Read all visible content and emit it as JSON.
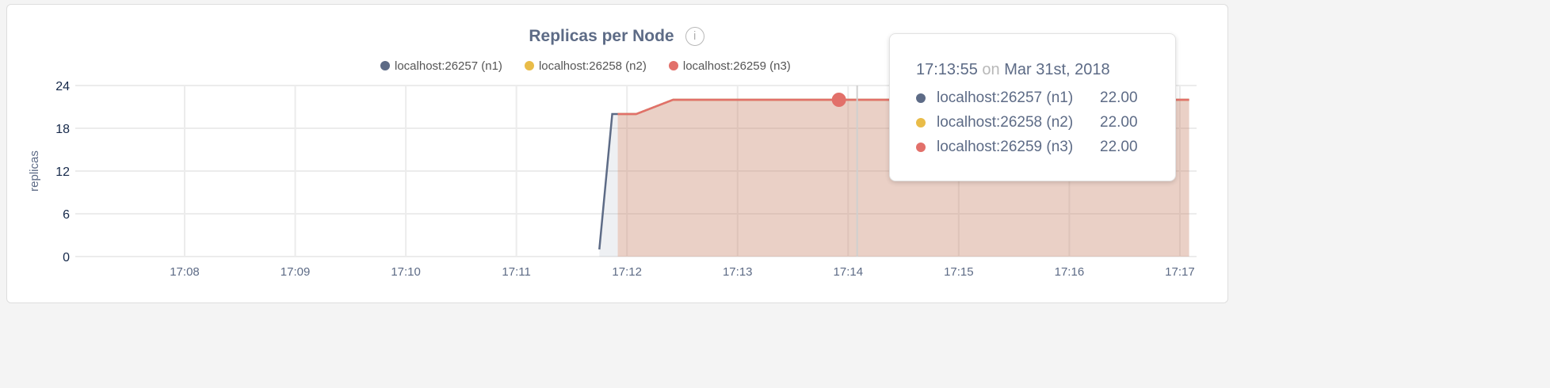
{
  "chart_data": {
    "type": "area",
    "title": "Replicas per Node",
    "ylabel": "replicas",
    "xlabel": "",
    "ylim": [
      0,
      24
    ],
    "yticks": [
      "0",
      "6",
      "12",
      "18",
      "24"
    ],
    "xlim": [
      "17:07:00",
      "17:17:10"
    ],
    "xticks": [
      "17:08",
      "17:09",
      "17:10",
      "17:11",
      "17:12",
      "17:13",
      "17:14",
      "17:15",
      "17:16",
      "17:17"
    ],
    "grid": true,
    "legend_position": "top-right",
    "series": [
      {
        "name": "localhost:26257 (n1)",
        "color": "#5d6b86",
        "points": [
          [
            "17:11:45",
            1
          ],
          [
            "17:11:52",
            20
          ],
          [
            "17:12:05",
            20
          ],
          [
            "17:12:25",
            22
          ],
          [
            "17:17:05",
            22
          ]
        ]
      },
      {
        "name": "localhost:26258 (n2)",
        "color": "#e9bc48",
        "points": [
          [
            "17:11:55",
            20
          ],
          [
            "17:12:05",
            20
          ],
          [
            "17:12:25",
            22
          ],
          [
            "17:17:05",
            22
          ]
        ]
      },
      {
        "name": "localhost:26259 (n3)",
        "color": "#e2706a",
        "points": [
          [
            "17:11:55",
            20
          ],
          [
            "17:12:05",
            20
          ],
          [
            "17:12:25",
            22
          ],
          [
            "17:17:05",
            22
          ]
        ]
      }
    ]
  },
  "info_icon": "info-icon",
  "tooltip": {
    "time": "17:13:55",
    "on": "on",
    "date": "Mar 31st, 2018",
    "rows": [
      {
        "label": "localhost:26257 (n1)",
        "value": "22.00",
        "color": "#5d6b86"
      },
      {
        "label": "localhost:26258 (n2)",
        "value": "22.00",
        "color": "#e9bc48"
      },
      {
        "label": "localhost:26259 (n3)",
        "value": "22.00",
        "color": "#e2706a"
      }
    ]
  }
}
